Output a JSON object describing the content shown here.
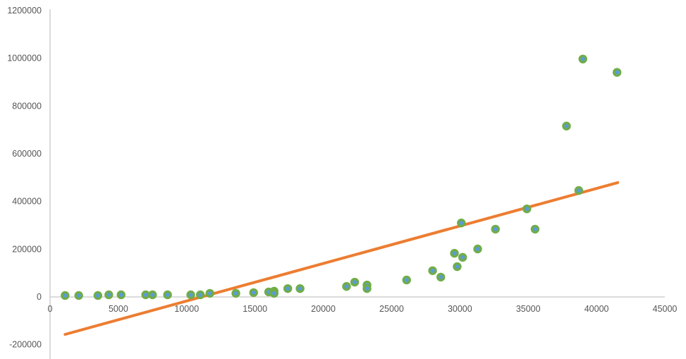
{
  "chart_data": {
    "type": "scatter",
    "title": "",
    "xlabel": "",
    "ylabel": "",
    "xlim": [
      0,
      45000
    ],
    "ylim": [
      -200000,
      1200000
    ],
    "grid": false,
    "legend": null,
    "x_ticks": [
      0,
      5000,
      10000,
      15000,
      20000,
      25000,
      30000,
      35000,
      40000,
      45000
    ],
    "y_ticks": [
      -200000,
      0,
      200000,
      400000,
      600000,
      800000,
      1000000,
      1200000
    ],
    "series": [
      {
        "name": "data",
        "marker": "circle",
        "color_fill": "#5b9bd5",
        "color_edge": "#70ad47",
        "points": [
          [
            1100,
            6000
          ],
          [
            2100,
            6000
          ],
          [
            3500,
            6000
          ],
          [
            4300,
            9000
          ],
          [
            5200,
            9000
          ],
          [
            7000,
            9000
          ],
          [
            7500,
            9000
          ],
          [
            8600,
            9000
          ],
          [
            10300,
            9000
          ],
          [
            11000,
            9000
          ],
          [
            11700,
            15000
          ],
          [
            13600,
            15000
          ],
          [
            14900,
            18000
          ],
          [
            16000,
            21000
          ],
          [
            16400,
            24000
          ],
          [
            16400,
            15000
          ],
          [
            17400,
            35000
          ],
          [
            18300,
            35000
          ],
          [
            21700,
            44000
          ],
          [
            22300,
            62000
          ],
          [
            23200,
            50000
          ],
          [
            23200,
            35000
          ],
          [
            26100,
            71000
          ],
          [
            28000,
            110000
          ],
          [
            28600,
            83000
          ],
          [
            29600,
            183000
          ],
          [
            29800,
            127000
          ],
          [
            30200,
            166000
          ],
          [
            30100,
            310000
          ],
          [
            31300,
            201000
          ],
          [
            32600,
            284000
          ],
          [
            34900,
            369000
          ],
          [
            35500,
            284000
          ],
          [
            37800,
            716000
          ],
          [
            38700,
            446000
          ],
          [
            39000,
            997000
          ],
          [
            41500,
            941000
          ]
        ]
      },
      {
        "name": "trendline",
        "type": "line",
        "color": "#ed7d31",
        "points": [
          [
            1100,
            -157000
          ],
          [
            41550,
            479000
          ]
        ]
      }
    ]
  }
}
